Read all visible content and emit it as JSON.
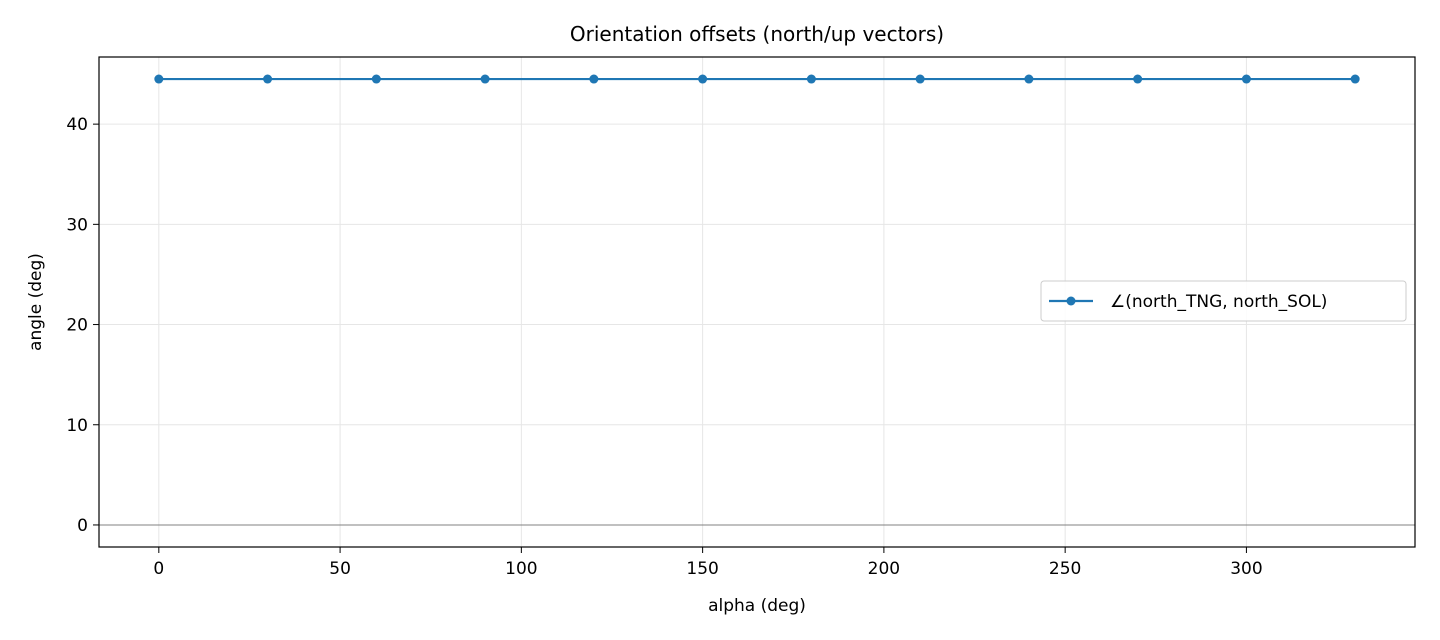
{
  "chart_data": {
    "type": "line",
    "title": "Orientation offsets (north/up vectors)",
    "xlabel": "alpha (deg)",
    "ylabel": "angle (deg)",
    "xlim": [
      -16.5,
      346.5
    ],
    "ylim": [
      -2.2,
      46.7
    ],
    "xticks": [
      0,
      50,
      100,
      150,
      200,
      250,
      300
    ],
    "yticks": [
      0,
      10,
      20,
      30,
      40
    ],
    "grid": true,
    "reference_line_y": 0,
    "legend_position": "center-right",
    "colors": {
      "series": "#1f77b4",
      "grid": "#e6e6e6",
      "zero_line": "#808080",
      "axes": "#000000"
    },
    "series": [
      {
        "name": "∠(north_TNG, north_SOL)",
        "marker": "circle",
        "x": [
          0,
          30,
          60,
          90,
          120,
          150,
          180,
          210,
          240,
          270,
          300,
          330
        ],
        "y": [
          44.5,
          44.5,
          44.5,
          44.5,
          44.5,
          44.5,
          44.5,
          44.5,
          44.5,
          44.5,
          44.5,
          44.5
        ]
      }
    ]
  }
}
